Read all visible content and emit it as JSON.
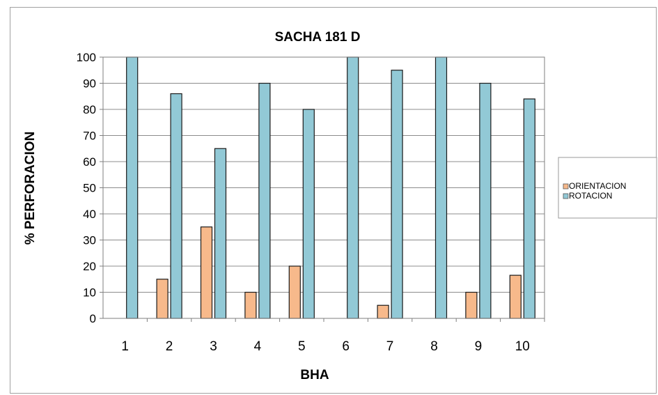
{
  "chart_data": {
    "type": "bar",
    "title": "SACHA 181 D",
    "xlabel": "BHA",
    "ylabel": "% PERFORACION",
    "categories": [
      "1",
      "2",
      "3",
      "4",
      "5",
      "6",
      "7",
      "8",
      "9",
      "10"
    ],
    "series": [
      {
        "name": "ORIENTACION",
        "color": "#f7b98b",
        "values": [
          0,
          15,
          35,
          10,
          20,
          0,
          5,
          0,
          10,
          16.5
        ]
      },
      {
        "name": "ROTACION",
        "color": "#92c9d6",
        "values": [
          100,
          86,
          65,
          90,
          80,
          100,
          95,
          100,
          90,
          84
        ]
      }
    ],
    "ylim": [
      0,
      100
    ],
    "yticks": [
      "0",
      "10",
      "20",
      "30",
      "40",
      "50",
      "60",
      "70",
      "80",
      "90",
      "100"
    ],
    "grid": true,
    "legend_position": "right"
  }
}
